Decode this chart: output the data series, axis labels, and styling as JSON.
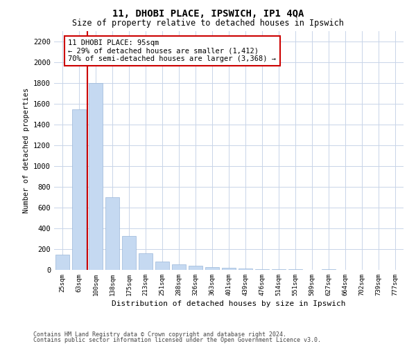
{
  "title": "11, DHOBI PLACE, IPSWICH, IP1 4QA",
  "subtitle": "Size of property relative to detached houses in Ipswich",
  "xlabel": "Distribution of detached houses by size in Ipswich",
  "ylabel": "Number of detached properties",
  "categories": [
    "25sqm",
    "63sqm",
    "100sqm",
    "138sqm",
    "175sqm",
    "213sqm",
    "251sqm",
    "288sqm",
    "326sqm",
    "363sqm",
    "401sqm",
    "439sqm",
    "476sqm",
    "514sqm",
    "551sqm",
    "589sqm",
    "627sqm",
    "664sqm",
    "702sqm",
    "739sqm",
    "777sqm"
  ],
  "values": [
    150,
    1550,
    1800,
    700,
    325,
    160,
    80,
    55,
    40,
    25,
    20,
    15,
    10,
    8,
    5,
    3,
    8,
    2,
    1,
    1,
    0
  ],
  "bar_color": "#c5d9f1",
  "bar_edge_color": "#9ab7d9",
  "property_line_index": 1.5,
  "property_line_color": "#cc0000",
  "annotation_text": "11 DHOBI PLACE: 95sqm\n← 29% of detached houses are smaller (1,412)\n70% of semi-detached houses are larger (3,368) →",
  "annotation_box_color": "#cc0000",
  "ylim": [
    0,
    2300
  ],
  "yticks": [
    0,
    200,
    400,
    600,
    800,
    1000,
    1200,
    1400,
    1600,
    1800,
    2000,
    2200
  ],
  "background_color": "#ffffff",
  "grid_color": "#c8d4e8",
  "footer1": "Contains HM Land Registry data © Crown copyright and database right 2024.",
  "footer2": "Contains public sector information licensed under the Open Government Licence v3.0."
}
